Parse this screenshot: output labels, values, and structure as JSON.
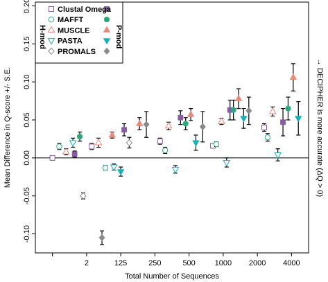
{
  "chart_data": {
    "type": "scatter",
    "xlabel": "Total Number of Sequences",
    "ylabel": "Mean Difference in Q-score +/- S.E.",
    "right_label": "→ DECIPHER is more accurate (ΔQ > 0)",
    "ylim": [
      -0.125,
      0.205
    ],
    "yticks": [
      -0.1,
      -0.05,
      0.0,
      0.05,
      0.1,
      0.15,
      0.2
    ],
    "ytick_labels": [
      "-0.10",
      "-0.05",
      "0.00",
      "0.05",
      "0.10",
      "0.15",
      "0.20"
    ],
    "xlim": [
      0.5,
      8.5
    ],
    "xticks": [
      1,
      2,
      3,
      4,
      5,
      6,
      7,
      8
    ],
    "xtick_labels": [
      "",
      "2",
      "125",
      "250",
      "500",
      "1000",
      "2000",
      "4000"
    ],
    "hline": 0,
    "legend": {
      "position": "top-left",
      "left_header": "H-mod",
      "right_header": "P-mod",
      "entries": [
        {
          "name": "Clustal Omega",
          "color": "#8b5ca6",
          "open_marker": "square",
          "filled_marker": "square"
        },
        {
          "name": "MAFFT",
          "color": "#2ca87a",
          "open_marker": "circle",
          "filled_marker": "circle"
        },
        {
          "name": "MUSCLE",
          "color": "#e8897a",
          "open_marker": "triangle-up",
          "filled_marker": "triangle-up"
        },
        {
          "name": "PASTA",
          "color": "#1ab0b8",
          "open_marker": "triangle-down",
          "filled_marker": "triangle-down"
        },
        {
          "name": "PROMALS",
          "color": "#8a8a8a",
          "open_marker": "diamond",
          "filled_marker": "diamond"
        }
      ]
    },
    "points": [
      {
        "x": 1.0,
        "y": 0.0,
        "se": 0.003,
        "series": "Clustal Omega",
        "variant": "H-mod"
      },
      {
        "x": 1.2,
        "y": 0.015,
        "se": 0.004,
        "series": "MAFFT",
        "variant": "H-mod"
      },
      {
        "x": 1.4,
        "y": 0.008,
        "se": 0.004,
        "series": "MUSCLE",
        "variant": "H-mod"
      },
      {
        "x": 1.6,
        "y": 0.02,
        "se": 0.006,
        "series": "PASTA",
        "variant": "H-mod"
      },
      {
        "x": 1.8,
        "y": 0.028,
        "se": 0.006,
        "series": "MAFFT",
        "variant": "P-mod"
      },
      {
        "x": 1.65,
        "y": 0.005,
        "se": 0.004,
        "series": "Clustal Omega",
        "variant": "P-mod"
      },
      {
        "x": 1.9,
        "y": -0.05,
        "se": 0.004,
        "series": "PROMALS",
        "variant": "H-mod"
      },
      {
        "x": 2.45,
        "y": -0.105,
        "se": 0.009,
        "series": "PROMALS",
        "variant": "P-mod"
      },
      {
        "x": 2.15,
        "y": 0.015,
        "se": 0.004,
        "series": "Clustal Omega",
        "variant": "H-mod"
      },
      {
        "x": 2.35,
        "y": 0.02,
        "se": 0.006,
        "series": "MUSCLE",
        "variant": "H-mod"
      },
      {
        "x": 2.55,
        "y": -0.013,
        "se": 0.003,
        "series": "MAFFT",
        "variant": "H-mod"
      },
      {
        "x": 2.8,
        "y": -0.012,
        "se": 0.004,
        "series": "PASTA",
        "variant": "H-mod"
      },
      {
        "x": 3.0,
        "y": -0.018,
        "se": 0.006,
        "series": "PASTA",
        "variant": "P-mod"
      },
      {
        "x": 2.75,
        "y": 0.03,
        "se": 0.004,
        "series": "MUSCLE",
        "variant": "P-mod"
      },
      {
        "x": 3.1,
        "y": 0.037,
        "se": 0.008,
        "series": "Clustal Omega",
        "variant": "P-mod"
      },
      {
        "x": 3.25,
        "y": 0.02,
        "se": 0.007,
        "series": "PROMALS",
        "variant": "H-mod"
      },
      {
        "x": 3.55,
        "y": 0.045,
        "se": 0.008,
        "series": "MUSCLE",
        "variant": "P-mod"
      },
      {
        "x": 3.75,
        "y": 0.044,
        "se": 0.017,
        "series": "PROMALS",
        "variant": "P-mod"
      },
      {
        "x": 4.15,
        "y": 0.022,
        "se": 0.004,
        "series": "Clustal Omega",
        "variant": "H-mod"
      },
      {
        "x": 4.3,
        "y": 0.01,
        "se": 0.004,
        "series": "MAFFT",
        "variant": "H-mod"
      },
      {
        "x": 4.4,
        "y": 0.042,
        "se": 0.005,
        "series": "MUSCLE",
        "variant": "H-mod"
      },
      {
        "x": 4.6,
        "y": -0.015,
        "se": 0.005,
        "series": "PASTA",
        "variant": "H-mod"
      },
      {
        "x": 4.75,
        "y": 0.053,
        "se": 0.009,
        "series": "Clustal Omega",
        "variant": "P-mod"
      },
      {
        "x": 4.9,
        "y": 0.045,
        "se": 0.008,
        "series": "MAFFT",
        "variant": "P-mod"
      },
      {
        "x": 5.05,
        "y": 0.057,
        "se": 0.008,
        "series": "MUSCLE",
        "variant": "P-mod"
      },
      {
        "x": 5.2,
        "y": 0.02,
        "se": 0.01,
        "series": "PASTA",
        "variant": "P-mod"
      },
      {
        "x": 5.4,
        "y": 0.041,
        "se": 0.02,
        "series": "PROMALS",
        "variant": "P-mod"
      },
      {
        "x": 5.7,
        "y": 0.016,
        "se": 0.003,
        "series": "Clustal Omega",
        "variant": "H-mod"
      },
      {
        "x": 5.8,
        "y": 0.018,
        "se": 0.003,
        "series": "MAFFT",
        "variant": "H-mod"
      },
      {
        "x": 5.95,
        "y": 0.048,
        "se": 0.004,
        "series": "MUSCLE",
        "variant": "H-mod"
      },
      {
        "x": 6.1,
        "y": -0.006,
        "se": 0.006,
        "series": "PASTA",
        "variant": "H-mod"
      },
      {
        "x": 6.2,
        "y": 0.063,
        "se": 0.013,
        "series": "Clustal Omega",
        "variant": "P-mod"
      },
      {
        "x": 6.3,
        "y": 0.063,
        "se": 0.013,
        "series": "MAFFT",
        "variant": "P-mod"
      },
      {
        "x": 6.45,
        "y": 0.078,
        "se": 0.013,
        "series": "MUSCLE",
        "variant": "P-mod"
      },
      {
        "x": 6.6,
        "y": 0.052,
        "se": 0.013,
        "series": "PASTA",
        "variant": "P-mod"
      },
      {
        "x": 6.75,
        "y": 0.062,
        "se": 0.018,
        "series": "PROMALS",
        "variant": "P-mod"
      },
      {
        "x": 7.2,
        "y": 0.04,
        "se": 0.005,
        "series": "Clustal Omega",
        "variant": "H-mod"
      },
      {
        "x": 7.3,
        "y": 0.027,
        "se": 0.005,
        "series": "MAFFT",
        "variant": "H-mod"
      },
      {
        "x": 7.45,
        "y": 0.061,
        "se": 0.006,
        "series": "MUSCLE",
        "variant": "H-mod"
      },
      {
        "x": 7.6,
        "y": 0.004,
        "se": 0.008,
        "series": "PASTA",
        "variant": "H-mod"
      },
      {
        "x": 7.75,
        "y": 0.047,
        "se": 0.018,
        "series": "Clustal Omega",
        "variant": "P-mod"
      },
      {
        "x": 7.9,
        "y": 0.065,
        "se": 0.015,
        "series": "MAFFT",
        "variant": "P-mod"
      },
      {
        "x": 8.05,
        "y": 0.106,
        "se": 0.018,
        "series": "MUSCLE",
        "variant": "P-mod"
      },
      {
        "x": 8.2,
        "y": 0.052,
        "se": 0.022,
        "series": "PASTA",
        "variant": "P-mod"
      }
    ]
  }
}
